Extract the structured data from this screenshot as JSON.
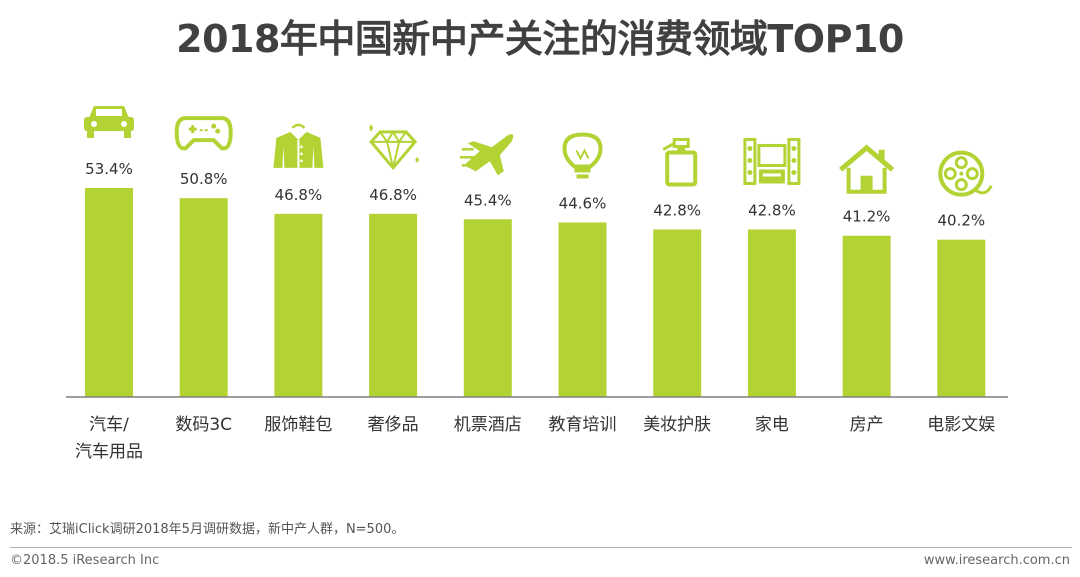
{
  "title": "2018年中国新中产关注的消费领域TOP10",
  "source": "来源：艾瑞iClick调研2018年5月调研数据，新中产人群，N=500。",
  "copyright": "©2018.5 iResearch Inc",
  "website": "www.iresearch.com.cn",
  "colors": {
    "bar": "#b3d335",
    "axis": "#7f7f7f"
  },
  "chart_data": {
    "type": "bar",
    "title": "2018年中国新中产关注的消费领域TOP10",
    "categories": [
      "汽车/汽车用品",
      "数码3C",
      "服饰鞋包",
      "奢侈品",
      "机票酒店",
      "教育培训",
      "美妆护肤",
      "家电",
      "房产",
      "电影文娱"
    ],
    "category_lines": [
      [
        "汽车/",
        "汽车用品"
      ],
      [
        "数码3C"
      ],
      [
        "服饰鞋包"
      ],
      [
        "奢侈品"
      ],
      [
        "机票酒店"
      ],
      [
        "教育培训"
      ],
      [
        "美妆护肤"
      ],
      [
        "家电"
      ],
      [
        "房产"
      ],
      [
        "电影文娱"
      ]
    ],
    "values": [
      53.4,
      50.8,
      46.8,
      46.8,
      45.4,
      44.6,
      42.8,
      42.8,
      41.2,
      40.2
    ],
    "value_labels": [
      "53.4%",
      "50.8%",
      "46.8%",
      "46.8%",
      "45.4%",
      "44.6%",
      "42.8%",
      "42.8%",
      "41.2%",
      "40.2%"
    ],
    "icons": [
      "car-icon",
      "gamepad-icon",
      "shirt-icon",
      "diamond-icon",
      "airplane-icon",
      "lightbulb-icon",
      "cosmetics-bottle-icon",
      "home-theater-icon",
      "house-icon",
      "film-reel-icon"
    ],
    "xlabel": "",
    "ylabel": "",
    "grid": false
  }
}
